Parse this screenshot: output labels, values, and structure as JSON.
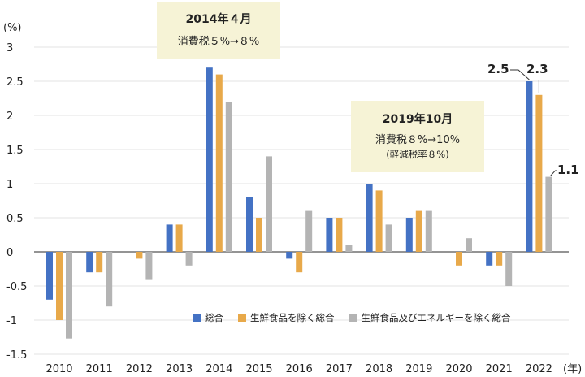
{
  "chart_data": {
    "type": "bar",
    "categories": [
      "2010",
      "2011",
      "2012",
      "2013",
      "2014",
      "2015",
      "2016",
      "2017",
      "2018",
      "2019",
      "2020",
      "2021",
      "2022"
    ],
    "series": [
      {
        "name": "総合",
        "color": "#4472c4",
        "values": [
          -0.7,
          -0.3,
          0,
          0.4,
          2.7,
          0.8,
          -0.1,
          0.5,
          1.0,
          0.5,
          0,
          -0.2,
          2.5
        ]
      },
      {
        "name": "生鮮食品を除く総合",
        "color": "#e8a94a",
        "values": [
          -1.0,
          -0.3,
          -0.1,
          0.4,
          2.6,
          0.5,
          -0.3,
          0.5,
          0.9,
          0.6,
          -0.2,
          -0.2,
          2.3
        ]
      },
      {
        "name": "生鮮食品及びエネルギーを除く総合",
        "color": "#b4b4b4",
        "values": [
          -1.27,
          -0.8,
          -0.4,
          -0.2,
          2.2,
          1.4,
          0.6,
          0.1,
          0.4,
          0.6,
          0.2,
          -0.5,
          1.1
        ]
      }
    ],
    "y_unit_label": "(%)",
    "x_unit_label": "(年)",
    "ylim": [
      -1.5,
      3
    ],
    "y_ticks": [
      "3",
      "2.5",
      "2",
      "1.5",
      "1",
      "0.5",
      "0",
      "-0.5",
      "-1",
      "-1.5"
    ],
    "y_tick_values": [
      3,
      2.5,
      2,
      1.5,
      1,
      0.5,
      0,
      -0.5,
      -1,
      -1.5
    ],
    "grid": "horizontal",
    "legend_position": "bottom",
    "annotations": [
      {
        "line1": "2014年４月",
        "line2": "消費税５%→８%"
      },
      {
        "line1": "2019年10月",
        "line2": "消費税８%→10%",
        "line3": "(軽減税率８%)"
      }
    ],
    "callouts": [
      "2.5",
      "2.3",
      "1.1"
    ]
  }
}
